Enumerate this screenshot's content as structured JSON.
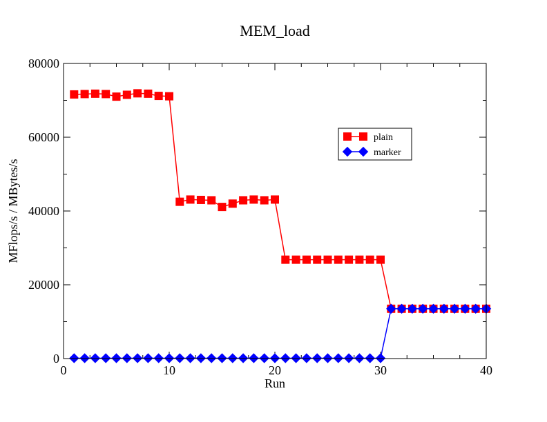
{
  "chart_data": {
    "type": "line",
    "title": "MEM_load",
    "xlabel": "Run",
    "ylabel": "MFlops/s / MBytes/s",
    "xlim": [
      0,
      40
    ],
    "ylim": [
      0,
      80000
    ],
    "x_ticks": [
      0,
      10,
      20,
      30,
      40
    ],
    "y_ticks": [
      0,
      20000,
      40000,
      60000,
      80000
    ],
    "x_tick_labels": [
      "0",
      "10",
      "20",
      "30",
      "40"
    ],
    "y_tick_labels": [
      "0",
      "20000",
      "40000",
      "60000",
      "80000"
    ],
    "grid": false,
    "legend_position": "upper-right",
    "series": [
      {
        "name": "plain",
        "color": "#ff0000",
        "marker": "square",
        "x": [
          1,
          2,
          3,
          4,
          5,
          6,
          7,
          8,
          9,
          10,
          11,
          12,
          13,
          14,
          15,
          16,
          17,
          18,
          19,
          20,
          21,
          22,
          23,
          24,
          25,
          26,
          27,
          28,
          29,
          30,
          31,
          32,
          33,
          34,
          35,
          36,
          37,
          38,
          39,
          40
        ],
        "values": [
          71600,
          71700,
          71800,
          71700,
          71000,
          71500,
          71900,
          71800,
          71200,
          71100,
          42500,
          43100,
          43000,
          42900,
          41100,
          42000,
          42900,
          43100,
          42900,
          43100,
          26800,
          26800,
          26800,
          26800,
          26800,
          26800,
          26800,
          26800,
          26800,
          26800,
          13500,
          13500,
          13500,
          13500,
          13500,
          13500,
          13500,
          13500,
          13500,
          13500
        ]
      },
      {
        "name": "marker",
        "color": "#0000ff",
        "marker": "diamond",
        "x": [
          1,
          2,
          3,
          4,
          5,
          6,
          7,
          8,
          9,
          10,
          11,
          12,
          13,
          14,
          15,
          16,
          17,
          18,
          19,
          20,
          21,
          22,
          23,
          24,
          25,
          26,
          27,
          28,
          29,
          30,
          31,
          32,
          33,
          34,
          35,
          36,
          37,
          38,
          39,
          40
        ],
        "values": [
          100,
          100,
          100,
          100,
          100,
          100,
          100,
          100,
          100,
          100,
          100,
          100,
          100,
          100,
          100,
          100,
          100,
          100,
          100,
          100,
          100,
          100,
          100,
          100,
          100,
          100,
          100,
          100,
          100,
          100,
          13500,
          13500,
          13500,
          13500,
          13500,
          13500,
          13500,
          13500,
          13500,
          13500
        ]
      }
    ]
  }
}
